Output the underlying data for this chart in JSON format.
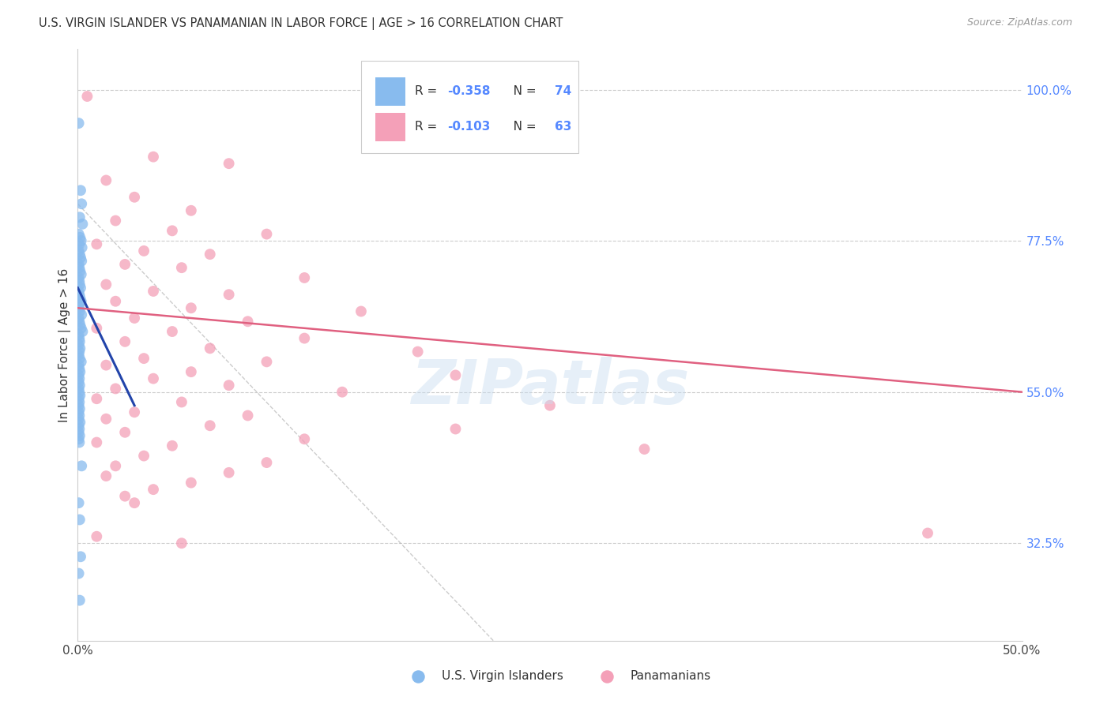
{
  "title": "U.S. VIRGIN ISLANDER VS PANAMANIAN IN LABOR FORCE | AGE > 16 CORRELATION CHART",
  "source": "Source: ZipAtlas.com",
  "ylabel": "In Labor Force | Age > 16",
  "xmin": 0.0,
  "xmax": 50.0,
  "ymin": 18.0,
  "ymax": 106.0,
  "right_yticks": [
    100.0,
    77.5,
    55.0,
    32.5
  ],
  "right_ytick_labels": [
    "100.0%",
    "77.5%",
    "55.0%",
    "32.5%"
  ],
  "bottom_legend_blue": "U.S. Virgin Islanders",
  "bottom_legend_pink": "Panamanians",
  "blue_color": "#88bbee",
  "pink_color": "#f4a0b8",
  "blue_line_color": "#2244aa",
  "pink_line_color": "#e06080",
  "watermark": "ZIPatlas",
  "blue_R": -0.358,
  "pink_R": -0.103,
  "blue_N": 74,
  "pink_N": 63,
  "blue_line_x0": 0.0,
  "blue_line_y0": 70.5,
  "blue_line_x1": 3.0,
  "blue_line_y1": 53.0,
  "pink_line_x0": 0.0,
  "pink_line_y0": 67.5,
  "pink_line_x1": 50.0,
  "pink_line_y1": 55.0,
  "ref_line_x0": 0.0,
  "ref_line_y0": 83.0,
  "ref_line_x1": 22.0,
  "ref_line_y1": 18.0,
  "blue_dots": [
    [
      0.05,
      95.0
    ],
    [
      0.15,
      85.0
    ],
    [
      0.2,
      83.0
    ],
    [
      0.1,
      81.0
    ],
    [
      0.25,
      80.0
    ],
    [
      0.05,
      78.5
    ],
    [
      0.12,
      78.0
    ],
    [
      0.18,
      77.5
    ],
    [
      0.08,
      77.0
    ],
    [
      0.22,
      76.5
    ],
    [
      0.05,
      76.0
    ],
    [
      0.1,
      75.5
    ],
    [
      0.15,
      75.0
    ],
    [
      0.2,
      74.5
    ],
    [
      0.05,
      74.0
    ],
    [
      0.08,
      73.5
    ],
    [
      0.12,
      73.0
    ],
    [
      0.18,
      72.5
    ],
    [
      0.05,
      72.0
    ],
    [
      0.08,
      71.5
    ],
    [
      0.1,
      71.0
    ],
    [
      0.15,
      70.5
    ],
    [
      0.05,
      70.0
    ],
    [
      0.08,
      69.5
    ],
    [
      0.12,
      69.0
    ],
    [
      0.18,
      68.5
    ],
    [
      0.05,
      68.0
    ],
    [
      0.08,
      67.5
    ],
    [
      0.1,
      67.0
    ],
    [
      0.2,
      66.5
    ],
    [
      0.05,
      66.0
    ],
    [
      0.08,
      65.5
    ],
    [
      0.12,
      65.0
    ],
    [
      0.18,
      64.5
    ],
    [
      0.25,
      64.0
    ],
    [
      0.05,
      63.5
    ],
    [
      0.08,
      63.0
    ],
    [
      0.1,
      62.5
    ],
    [
      0.05,
      62.0
    ],
    [
      0.12,
      61.5
    ],
    [
      0.08,
      61.0
    ],
    [
      0.05,
      60.5
    ],
    [
      0.1,
      60.0
    ],
    [
      0.18,
      59.5
    ],
    [
      0.05,
      59.0
    ],
    [
      0.08,
      58.5
    ],
    [
      0.12,
      58.0
    ],
    [
      0.05,
      57.5
    ],
    [
      0.08,
      57.0
    ],
    [
      0.05,
      56.5
    ],
    [
      0.1,
      56.0
    ],
    [
      0.05,
      55.5
    ],
    [
      0.08,
      55.0
    ],
    [
      0.12,
      54.5
    ],
    [
      0.05,
      54.0
    ],
    [
      0.08,
      53.5
    ],
    [
      0.05,
      53.0
    ],
    [
      0.1,
      52.5
    ],
    [
      0.05,
      52.0
    ],
    [
      0.08,
      51.5
    ],
    [
      0.05,
      51.0
    ],
    [
      0.12,
      50.5
    ],
    [
      0.05,
      50.0
    ],
    [
      0.08,
      49.5
    ],
    [
      0.05,
      49.0
    ],
    [
      0.1,
      48.5
    ],
    [
      0.05,
      48.0
    ],
    [
      0.08,
      47.5
    ],
    [
      0.2,
      44.0
    ],
    [
      0.05,
      38.5
    ],
    [
      0.1,
      36.0
    ],
    [
      0.15,
      30.5
    ],
    [
      0.05,
      28.0
    ],
    [
      0.1,
      24.0
    ]
  ],
  "pink_dots": [
    [
      0.5,
      99.0
    ],
    [
      4.0,
      90.0
    ],
    [
      8.0,
      89.0
    ],
    [
      1.5,
      86.5
    ],
    [
      3.0,
      84.0
    ],
    [
      6.0,
      82.0
    ],
    [
      2.0,
      80.5
    ],
    [
      5.0,
      79.0
    ],
    [
      10.0,
      78.5
    ],
    [
      1.0,
      77.0
    ],
    [
      3.5,
      76.0
    ],
    [
      7.0,
      75.5
    ],
    [
      2.5,
      74.0
    ],
    [
      5.5,
      73.5
    ],
    [
      12.0,
      72.0
    ],
    [
      1.5,
      71.0
    ],
    [
      4.0,
      70.0
    ],
    [
      8.0,
      69.5
    ],
    [
      2.0,
      68.5
    ],
    [
      6.0,
      67.5
    ],
    [
      15.0,
      67.0
    ],
    [
      3.0,
      66.0
    ],
    [
      9.0,
      65.5
    ],
    [
      1.0,
      64.5
    ],
    [
      5.0,
      64.0
    ],
    [
      12.0,
      63.0
    ],
    [
      2.5,
      62.5
    ],
    [
      7.0,
      61.5
    ],
    [
      18.0,
      61.0
    ],
    [
      3.5,
      60.0
    ],
    [
      10.0,
      59.5
    ],
    [
      1.5,
      59.0
    ],
    [
      6.0,
      58.0
    ],
    [
      20.0,
      57.5
    ],
    [
      4.0,
      57.0
    ],
    [
      8.0,
      56.0
    ],
    [
      2.0,
      55.5
    ],
    [
      14.0,
      55.0
    ],
    [
      1.0,
      54.0
    ],
    [
      5.5,
      53.5
    ],
    [
      25.0,
      53.0
    ],
    [
      3.0,
      52.0
    ],
    [
      9.0,
      51.5
    ],
    [
      1.5,
      51.0
    ],
    [
      7.0,
      50.0
    ],
    [
      20.0,
      49.5
    ],
    [
      2.5,
      49.0
    ],
    [
      12.0,
      48.0
    ],
    [
      1.0,
      47.5
    ],
    [
      5.0,
      47.0
    ],
    [
      30.0,
      46.5
    ],
    [
      3.5,
      45.5
    ],
    [
      10.0,
      44.5
    ],
    [
      2.0,
      44.0
    ],
    [
      8.0,
      43.0
    ],
    [
      1.5,
      42.5
    ],
    [
      6.0,
      41.5
    ],
    [
      4.0,
      40.5
    ],
    [
      2.5,
      39.5
    ],
    [
      3.0,
      38.5
    ],
    [
      45.0,
      34.0
    ],
    [
      1.0,
      33.5
    ],
    [
      5.5,
      32.5
    ]
  ]
}
